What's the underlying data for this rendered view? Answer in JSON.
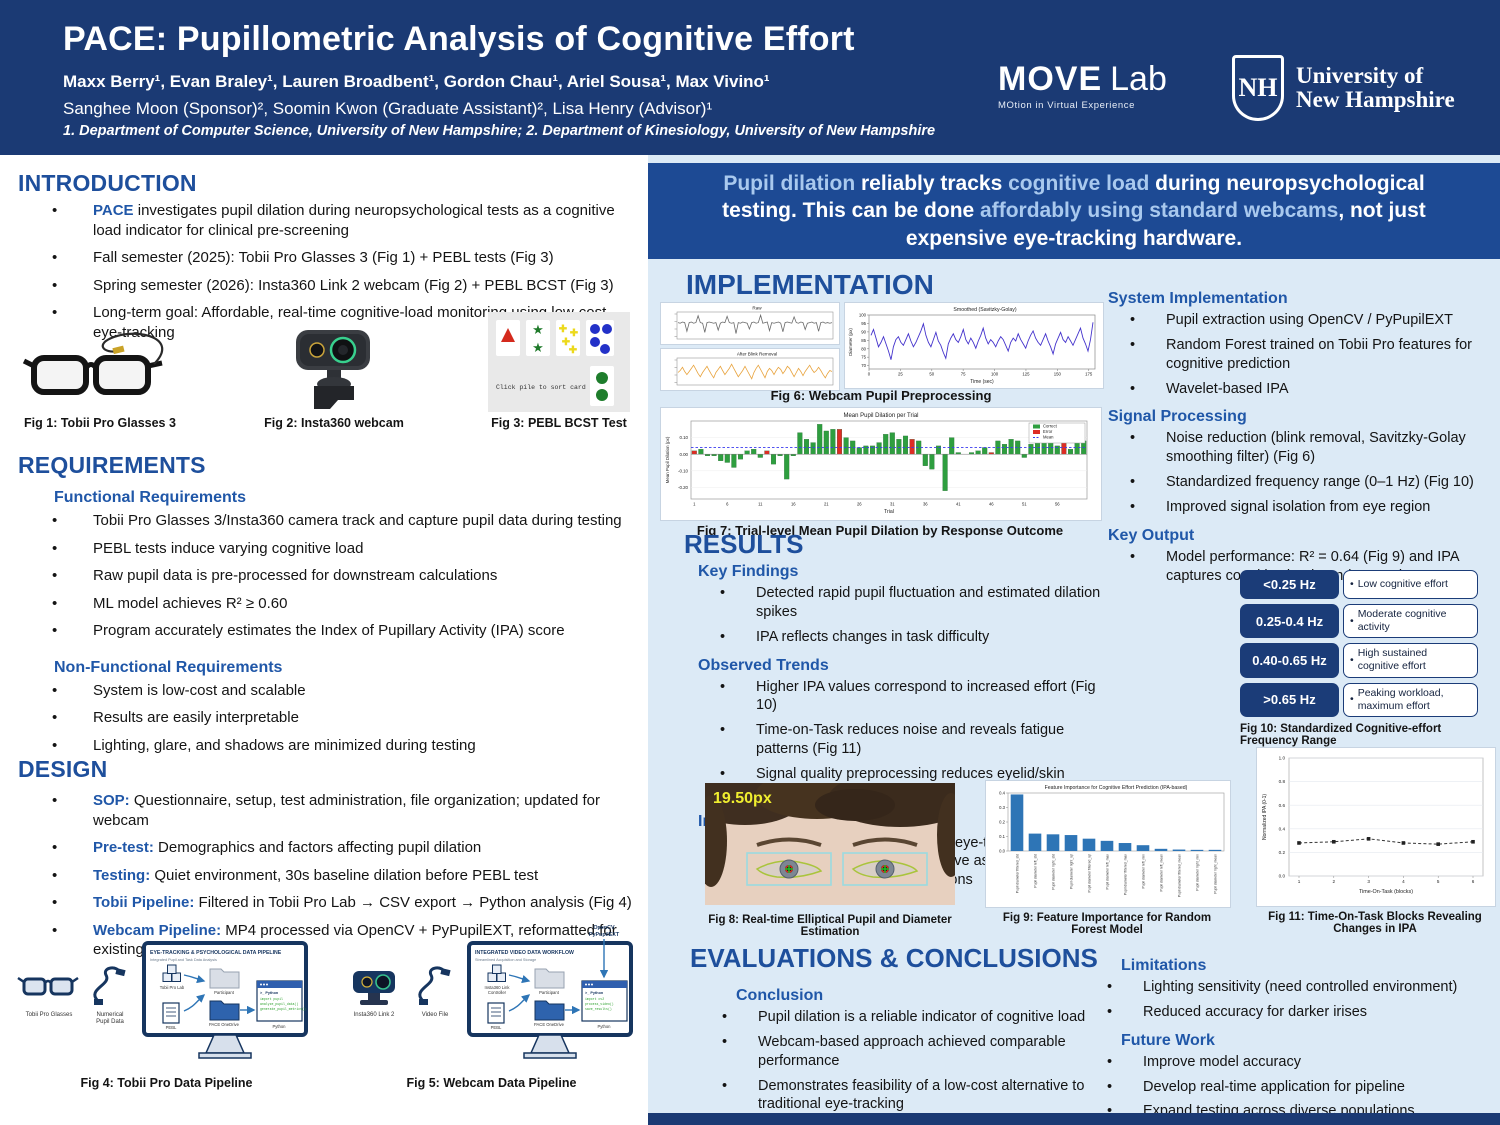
{
  "header": {
    "title": "PACE: Pupillometric Analysis of Cognitive Effort",
    "authors_line1": "Maxx Berry¹, Evan Braley¹, Lauren Broadbent¹, Gordon Chau¹, Ariel Sousa¹, Max Vivino¹",
    "authors_line2": "Sanghee Moon (Sponsor)², Soomin Kwon (Graduate Assistant)², Lisa Henry (Advisor)¹",
    "affiliations": "1. Department of Computer Science, University of New Hampshire; 2. Department of Kinesiology, University of New Hampshire",
    "movelab_name": "MOVE",
    "movelab_suffix": "Lab",
    "movelab_tagline": "MOtion in Virtual Experience",
    "unh_shield": "NH",
    "unh_line1": "University of",
    "unh_line2": "New Hampshire"
  },
  "banner": {
    "seg1": "Pupil dilation",
    "seg2": " reliably tracks ",
    "seg3": "cognitive load",
    "seg4": " during neuropsychological testing. This can be done ",
    "seg5": "affordably using standard webcams",
    "seg6": ", not just expensive eye-tracking hardware."
  },
  "sections": {
    "intro": {
      "title": "INTRODUCTION",
      "bullets": [
        {
          "lead": "PACE",
          "rest": " investigates pupil dilation during neuropsychological tests as a cognitive load indicator for clinical pre-screening"
        },
        {
          "lead": "",
          "rest": "Fall semester (2025): Tobii Pro Glasses 3 (Fig 1) + PEBL tests (Fig 3)"
        },
        {
          "lead": "",
          "rest": "Spring semester (2026): Insta360 Link 2 webcam (Fig 2) + PEBL BCST (Fig 3)"
        },
        {
          "lead": "",
          "rest": "Long-term goal: Affordable, real-time cognitive-load monitoring using low-cost eye-tracking"
        }
      ]
    },
    "requirements": {
      "title": "REQUIREMENTS",
      "functional_heading": "Functional Requirements",
      "functional": [
        "Tobii Pro Glasses 3/Insta360 camera track and capture pupil data during testing",
        "PEBL tests induce varying cognitive load",
        "Raw pupil data is pre-processed for downstream calculations",
        "ML model achieves R² ≥ 0.60",
        "Program accurately estimates the Index of Pupillary Activity (IPA) score"
      ],
      "nonfunctional_heading": "Non-Functional Requirements",
      "nonfunctional": [
        "System is low-cost and scalable",
        "Results are easily interpretable",
        "Lighting, glare, and shadows are minimized during testing"
      ]
    },
    "design": {
      "title": "DESIGN",
      "bullets": [
        {
          "lead": "SOP:",
          "rest": " Questionnaire, setup, test administration, file organization; updated for webcam"
        },
        {
          "lead": "Pre-test:",
          "rest": " Demographics and factors affecting pupil dilation"
        },
        {
          "lead": "Testing:",
          "rest": " Quiet environment, 30s baseline dilation before PEBL test"
        },
        {
          "lead": "Tobii Pipeline:",
          "rest": " Filtered in Tobii Pro Lab → CSV export → Python analysis (Fig 4)"
        },
        {
          "lead": "Webcam Pipeline:",
          "rest": " MP4 processed via OpenCV + PyPupilEXT, reformatted for existing IPA code (Fig 5)"
        }
      ]
    },
    "implementation": {
      "title": "IMPLEMENTATION",
      "system_heading": "System Implementation",
      "system": [
        "Pupil extraction using OpenCV / PyPupilEXT",
        "Random Forest trained on Tobii Pro features for cognitive prediction",
        "Wavelet-based IPA"
      ],
      "signal_heading": "Signal Processing",
      "signal": [
        "Noise reduction (blink removal, Savitzky-Golay smoothing filter) (Fig 6)",
        "Standardized frequency range (0–1 Hz) (Fig 10)",
        "Improved signal isolation from eye region"
      ],
      "keyoutput_heading": "Key Output",
      "keyoutput": [
        "Model performance: R² = 0.64 (Fig 9) and IPA captures cognitive load trends over time"
      ]
    },
    "results": {
      "title": "RESULTS",
      "keyfindings_heading": "Key Findings",
      "keyfindings": [
        "Detected rapid pupil fluctuation and estimated dilation spikes",
        "IPA reflects changes in task difficulty"
      ],
      "trends_heading": "Observed Trends",
      "trends": [
        "Higher IPA values correspond to increased effort (Fig 10)",
        "Time-on-Task reduces noise and reveals fatigue patterns (Fig 11)",
        "Signal quality preprocessing reduces eyelid/skin interference (Fig 8)"
      ],
      "implications_heading": "Implications",
      "implications": [
        "Supports feasibility of low cost-eye-tracking enabling broader accessibility for cognitive assessment and potential for real-time applications"
      ]
    },
    "evaluations": {
      "title": "EVALUATIONS & CONCLUSIONS",
      "conclusion_heading": "Conclusion",
      "conclusion": [
        "Pupil dilation is a reliable indicator of cognitive load",
        "Webcam-based approach achieved comparable performance",
        "Demonstrates feasibility of a low-cost alternative to traditional eye-tracking"
      ],
      "limitations_heading": "Limitations",
      "limitations": [
        "Lighting sensitivity (need controlled environment)",
        "Reduced accuracy for darker irises"
      ],
      "futurework_heading": "Future Work",
      "futurework": [
        "Improve model accuracy",
        "Develop real-time application for pipeline",
        "Expand testing across diverse populations"
      ]
    }
  },
  "figures": {
    "fig1_caption": "Fig 1: Tobii Pro Glasses 3",
    "fig2_caption": "Fig 2: Insta360 webcam",
    "fig3_caption": "Fig 3: PEBL BCST Test",
    "fig3_text": "Click pile to sort card",
    "fig4_caption": "Fig 4: Tobii Pro Data Pipeline",
    "fig5_caption": "Fig 5: Webcam Data Pipeline",
    "fig6_caption": "Fig 6: Webcam Pupil Preprocessing",
    "fig7_caption": "Fig 7: Trial-level Mean Pupil Dilation by Response Outcome",
    "fig8_caption": "Fig 8:  Real-time Elliptical Pupil and Diameter Estimation",
    "fig8_label": "19.50px",
    "fig9_caption": "Fig 9: Feature Importance for Random Forest Model",
    "fig10_caption": "Fig 10:  Standardized Cognitive-effort Frequency Range",
    "fig11_caption": "Fig 11: Time-On-Task Blocks Revealing Changes in IPA"
  },
  "fig10": {
    "rows": [
      {
        "range": "<0.25 Hz",
        "desc": "Low cognitive effort"
      },
      {
        "range": "0.25-0.4 Hz",
        "desc": "Moderate cognitive activity"
      },
      {
        "range": "0.40-0.65 Hz",
        "desc": "High sustained cognitive effort"
      },
      {
        "range": ">0.65 Hz",
        "desc": "Peaking workload, maximum effort"
      }
    ]
  },
  "pipeline4": {
    "device_label": "Tobii Pro Glasses",
    "cable_label": "Numerical\nPupil Data",
    "monitor_title": "EYE-TRACKING & PSYCHOLOGICAL DATA PIPELINE",
    "monitor_subtitle": "Integrated Pupil and Task Data Analysis",
    "src1": "Tobii Pro Lab",
    "src2": "PEBL",
    "folder1": "Participant",
    "folder2": "PACE OneDrive",
    "py_title": ">_ Python",
    "py_label": "Python",
    "code": [
      "import pupil",
      "analyze_pupil_data()",
      "generate_pupil_metrics()"
    ],
    "top_label": ""
  },
  "pipeline5": {
    "device_label": "Insta360 Link 2",
    "cable_label": "Video File",
    "monitor_title": "INTEGRATED VIDEO DATA WORKFLOW",
    "monitor_subtitle": "Streamlined Acquisition and Storage",
    "src1": "Insta360 Link\nController",
    "src2": "PEBL",
    "folder1": "Participant",
    "folder2": "PACE OneDrive",
    "py_title": ">_ Python",
    "py_label": "Python",
    "code": [
      "import cv2",
      "process_video()",
      "save_results()"
    ],
    "top_label": "OpenCV\nPyPupilEXT"
  },
  "chart_data": {
    "fig6": {
      "type": "line",
      "xlabel": "Time (sec)",
      "ylabel": "Diameter (px)",
      "xlim": [
        0,
        180
      ],
      "panels": [
        {
          "title": "Raw",
          "color": "#6a6a6a",
          "ylim": [
            60,
            100
          ],
          "values": [
            85,
            84,
            86,
            85,
            70,
            85,
            86,
            84,
            85,
            97,
            85,
            84,
            68,
            85,
            86,
            85,
            84,
            85,
            72,
            84,
            86,
            85,
            96,
            85,
            84,
            85,
            66,
            85,
            84,
            86,
            85,
            84,
            74,
            85,
            86,
            84,
            85,
            98,
            84,
            85,
            86,
            71,
            85,
            84,
            85,
            86,
            84,
            69,
            85,
            86,
            85,
            84,
            95,
            85,
            84,
            86,
            85,
            73,
            84,
            85,
            86,
            84,
            85,
            70,
            85,
            86,
            84,
            85,
            84,
            85
          ]
        },
        {
          "title": "After Blink Removal",
          "color": "#e8a33d",
          "ylim": [
            74,
            96
          ],
          "values": [
            84,
            86,
            89,
            85,
            82,
            85,
            88,
            91,
            87,
            83,
            80,
            84,
            87,
            90,
            86,
            82,
            79,
            84,
            87,
            90,
            86,
            82,
            85,
            88,
            92,
            88,
            84,
            80,
            83,
            86,
            90,
            86,
            82,
            78,
            84,
            88,
            91,
            87,
            83,
            79,
            85,
            88,
            86,
            82,
            86,
            89,
            87,
            83,
            86,
            90,
            88,
            84,
            80,
            84,
            88,
            85,
            81,
            85,
            88,
            91,
            87,
            84,
            86,
            89,
            86,
            82,
            79,
            83,
            86,
            85
          ]
        },
        {
          "title": "Smoothed (Savitzky-Golay)",
          "color": "#4433cc",
          "ylim": [
            68,
            100
          ],
          "values": [
            88,
            92,
            86,
            80,
            83,
            87,
            82,
            77,
            71,
            80,
            85,
            87,
            83,
            81,
            85,
            89,
            84,
            80,
            83,
            87,
            91,
            96,
            88,
            83,
            80,
            85,
            90,
            84,
            81,
            76,
            72,
            82,
            86,
            89,
            85,
            83,
            87,
            92,
            85,
            82,
            86,
            83,
            79,
            84,
            88,
            93,
            86,
            82,
            85,
            83,
            80,
            84,
            87,
            85,
            81,
            77,
            83,
            86,
            84,
            89,
            85,
            82,
            79,
            84,
            88,
            91,
            86,
            83,
            81,
            85,
            89,
            84,
            80,
            75,
            82,
            86,
            90,
            85,
            83,
            87,
            84,
            81,
            85,
            89,
            93,
            86,
            82,
            77,
            85,
            97
          ]
        }
      ]
    },
    "fig7": {
      "type": "bar",
      "title": "Mean Pupil Dilation per Trial",
      "xlabel": "Trial",
      "ylabel": "Mean Pupil Dilation (px)",
      "ylim": [
        -0.27,
        0.2
      ],
      "mean_line": 0.04,
      "legend": [
        "Correct",
        "Error",
        "Mean"
      ],
      "legend_colors": [
        "#2e9e3f",
        "#dd2c24",
        "#3a3aee"
      ],
      "values": [
        0.02,
        0.03,
        -0.01,
        -0.01,
        -0.04,
        -0.05,
        -0.08,
        -0.03,
        0.02,
        0.03,
        -0.02,
        0.02,
        -0.06,
        -0.01,
        -0.15,
        -0.01,
        0.13,
        0.09,
        0.07,
        0.18,
        0.14,
        0.15,
        0.15,
        0.1,
        0.08,
        0.04,
        0.05,
        0.05,
        0.07,
        0.12,
        0.13,
        0.09,
        0.11,
        0.09,
        0.08,
        -0.07,
        -0.09,
        0.05,
        -0.22,
        0.1,
        0.01,
        0.0,
        0.01,
        0.02,
        0.04,
        0.01,
        0.08,
        0.06,
        0.09,
        0.08,
        -0.02,
        0.06,
        0.08,
        0.09,
        0.08,
        0.05,
        0.11,
        0.03,
        0.12,
        0.08
      ],
      "outcomes": [
        "error",
        "correct",
        "correct",
        "correct",
        "correct",
        "correct",
        "correct",
        "correct",
        "correct",
        "correct",
        "correct",
        "error",
        "correct",
        "correct",
        "correct",
        "correct",
        "correct",
        "correct",
        "correct",
        "correct",
        "correct",
        "correct",
        "error",
        "correct",
        "correct",
        "correct",
        "correct",
        "correct",
        "correct",
        "correct",
        "correct",
        "correct",
        "correct",
        "error",
        "correct",
        "correct",
        "correct",
        "correct",
        "correct",
        "correct",
        "correct",
        "correct",
        "correct",
        "correct",
        "correct",
        "error",
        "correct",
        "correct",
        "correct",
        "correct",
        "correct",
        "correct",
        "correct",
        "correct",
        "correct",
        "correct",
        "error",
        "correct",
        "correct",
        "correct"
      ]
    },
    "fig9": {
      "type": "bar",
      "title": "Feature Importance for Cognitive Effort Prediction (IPA-based)",
      "ylim": [
        0,
        0.4
      ],
      "categories": [
        "Pupil diameter filtered_std",
        "Pupil diameter left_std",
        "Pupil diameter right_std",
        "Pupil diameter right_iqr",
        "Pupil diameter filtered_iqr",
        "Pupil diameter left_max",
        "Pupil diameter filtered_max",
        "Pupil diameter left_min",
        "Pupil diameter left_mean",
        "Pupil diameter filtered_mean",
        "Pupil diameter right_min",
        "Pupil diameter right_mean"
      ],
      "values": [
        0.39,
        0.12,
        0.115,
        0.11,
        0.085,
        0.07,
        0.055,
        0.04,
        0.015,
        0.01,
        0.008,
        0.008
      ],
      "bar_color": "#2e75b6"
    },
    "fig11": {
      "type": "line",
      "xlabel": "Time-On-Task (blocks)",
      "ylabel": "Normalized IPA (0-1)",
      "x": [
        1,
        2,
        3,
        4,
        5,
        6
      ],
      "y": [
        0.28,
        0.29,
        0.315,
        0.28,
        0.27,
        0.29
      ],
      "ylim": [
        0,
        1.0
      ]
    }
  },
  "colors": {
    "header_navy": "#1b3a74",
    "banner_blue": "#1d4a94",
    "rightcol_bg": "#dceaf6",
    "heading_blue": "#1e4f9c",
    "subheading_blue": "#2057a8",
    "correct_green": "#2e9e3f",
    "error_red": "#dd2c24",
    "mean_line_blue": "#3a3aee",
    "feature_bar_blue": "#2e75b6",
    "highlight_lightblue": "#a9c9ee"
  }
}
